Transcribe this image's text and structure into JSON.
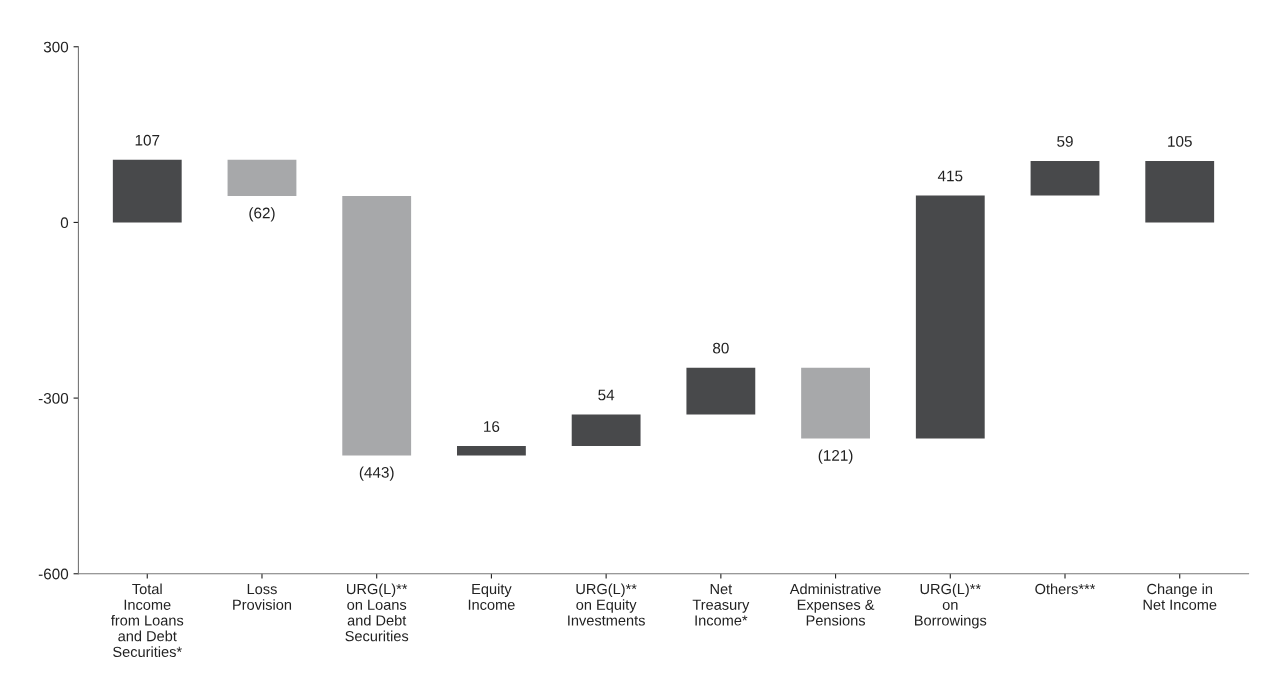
{
  "chart_data": {
    "type": "bar",
    "categories": [
      "Total\nIncome\nfrom Loans\nand Debt\nSecurities*",
      "Loss\nProvision",
      "URG(L)**\non Loans\nand Debt\nSecurities",
      "Equity\nIncome",
      "URG(L)**\non Equity\nInvestments",
      "Net\nTreasury\nIncome*",
      "Administrative\nExpenses &\nPensions",
      "URG(L)**\non\nBorrowings",
      "Others***",
      "Change in\nNet Income"
    ],
    "values": [
      107,
      -62,
      -443,
      16,
      54,
      80,
      -121,
      415,
      59,
      105
    ],
    "base": [
      0,
      107,
      45,
      -398,
      -382,
      -328,
      -248,
      -369,
      46,
      0
    ],
    "colors": [
      "#48494b",
      "#a7a8aa",
      "#a7a8aa",
      "#48494b",
      "#48494b",
      "#48494b",
      "#a7a8aa",
      "#48494b",
      "#48494b",
      "#48494b"
    ],
    "value_labels": [
      "107",
      "(62)",
      "(443)",
      "16",
      "54",
      "80",
      "(121)",
      "415",
      "59",
      "105"
    ],
    "ylim": [
      -600,
      300
    ],
    "yticks": [
      -600,
      -300,
      0,
      300
    ],
    "grid": false,
    "legend": false
  }
}
